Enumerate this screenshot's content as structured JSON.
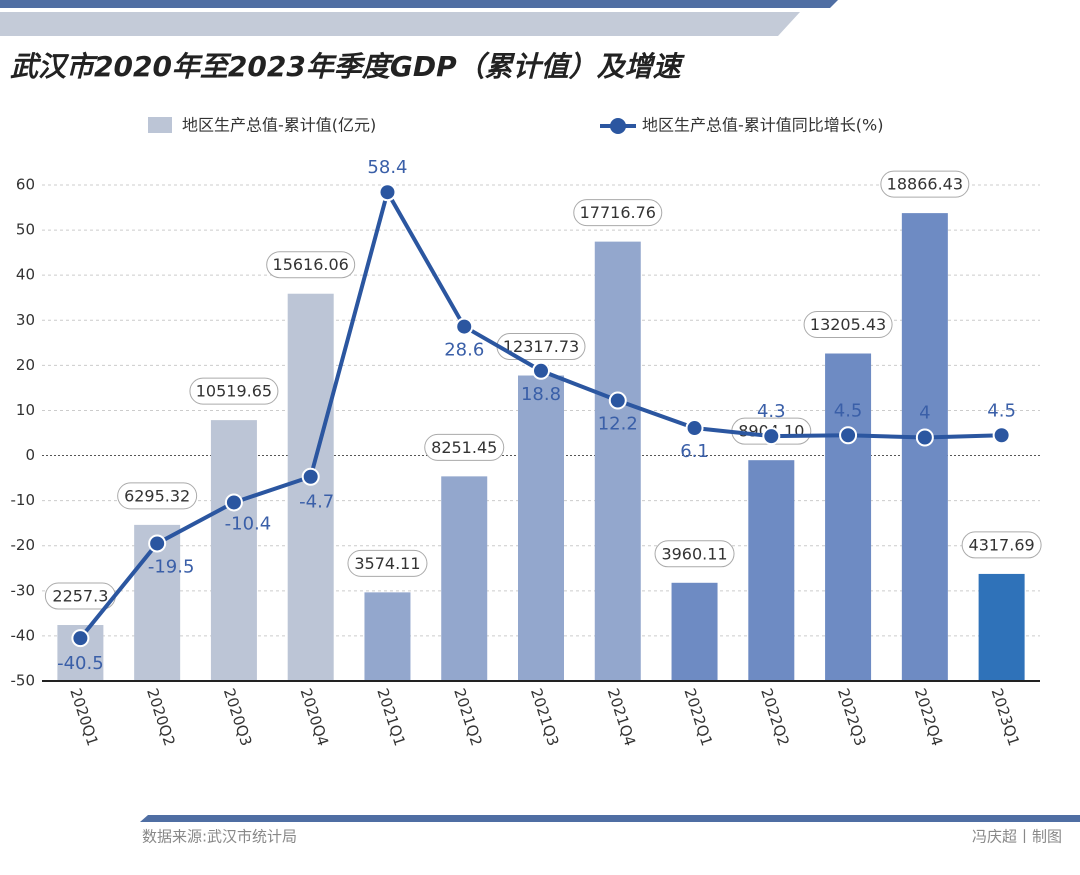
{
  "chart_data": {
    "type": "bar-line",
    "title": "武汉市2020年至2023年季度GDP（累计值）及增速",
    "categories": [
      "2020Q1",
      "2020Q2",
      "2020Q3",
      "2020Q4",
      "2021Q1",
      "2021Q2",
      "2021Q3",
      "2021Q4",
      "2022Q1",
      "2022Q2",
      "2022Q3",
      "2022Q4",
      "2023Q1"
    ],
    "series": [
      {
        "name": "地区生产总值-累计值(亿元)",
        "type": "bar",
        "axis": "y2",
        "color": "#bcc5d6",
        "colors": [
          "#bcc5d6",
          "#bcc5d6",
          "#bcc5d6",
          "#bcc5d6",
          "#93a7cd",
          "#93a7cd",
          "#93a7cd",
          "#93a7cd",
          "#6e8bc3",
          "#6e8bc3",
          "#6e8bc3",
          "#6e8bc3",
          "#2f72b9"
        ],
        "values": [
          2257.3,
          6295.32,
          10519.65,
          15616.06,
          3574.11,
          8251.45,
          12317.73,
          17716.76,
          3960.11,
          8904.1,
          13205.43,
          18866.43,
          4317.69
        ],
        "value_labels": [
          "2257.3",
          "6295.32",
          "10519.65",
          "15616.06",
          "3574.11",
          "8251.45",
          "12317.73",
          "17716.76",
          "3960.11",
          "8904.10",
          "13205.43",
          "18866.43",
          "4317.69"
        ]
      },
      {
        "name": "地区生产总值-累计值同比增长(%)",
        "type": "line",
        "color": "#2b56a0",
        "values": [
          -40.5,
          -19.5,
          -10.4,
          -4.7,
          58.4,
          28.6,
          18.8,
          12.2,
          6.1,
          4.3,
          4.5,
          4,
          4.5
        ]
      }
    ],
    "ylim": [
      -50,
      60
    ],
    "yticks": [
      -50,
      -40,
      -30,
      -20,
      -10,
      0,
      10,
      20,
      30,
      40,
      50,
      60
    ],
    "y2lim": [
      0,
      20000
    ],
    "grid": true,
    "source": "数据来源:武汉市统计局",
    "credit": "冯庆超丨制图"
  }
}
